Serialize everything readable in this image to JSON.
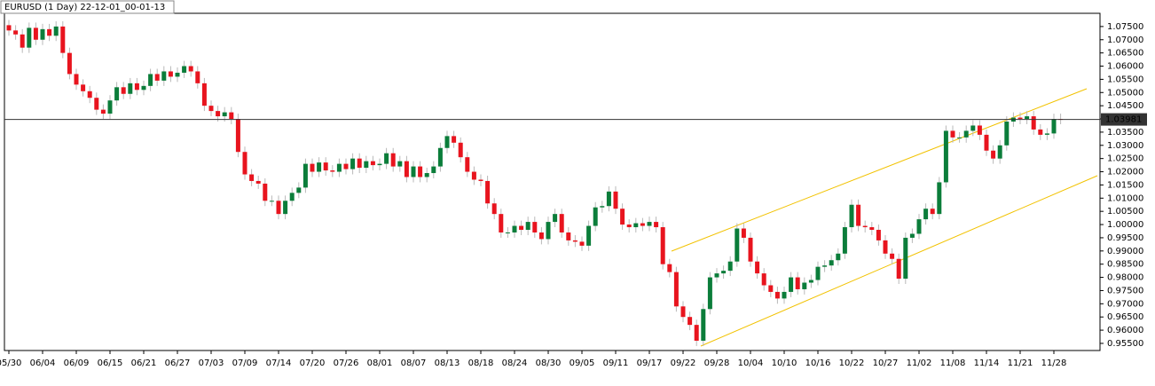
{
  "chart_data": {
    "type": "candlestick",
    "title": "EURUSD (1 Day) 22-12-01_00-01-13",
    "up_color": "#0b7d3a",
    "down_color": "#e8141e",
    "wick_color": "#b8b8b8",
    "ylim": [
      0.9523,
      1.08
    ],
    "yticks": [
      {
        "value": 0.955,
        "label": "0.95500"
      },
      {
        "value": 0.96,
        "label": "0.96000"
      },
      {
        "value": 0.965,
        "label": "0.96500"
      },
      {
        "value": 0.97,
        "label": "0.97000"
      },
      {
        "value": 0.975,
        "label": "0.97500"
      },
      {
        "value": 0.98,
        "label": "0.98000"
      },
      {
        "value": 0.985,
        "label": "0.98500"
      },
      {
        "value": 0.99,
        "label": "0.99000"
      },
      {
        "value": 0.995,
        "label": "0.99500"
      },
      {
        "value": 1.0,
        "label": "1.00000"
      },
      {
        "value": 1.005,
        "label": "1.00500"
      },
      {
        "value": 1.01,
        "label": "1.01000"
      },
      {
        "value": 1.015,
        "label": "1.01500"
      },
      {
        "value": 1.02,
        "label": "1.02000"
      },
      {
        "value": 1.025,
        "label": "1.02500"
      },
      {
        "value": 1.03,
        "label": "1.03000"
      },
      {
        "value": 1.035,
        "label": "1.03500"
      },
      {
        "value": 1.04,
        "label": "1.04000"
      },
      {
        "value": 1.045,
        "label": "1.04500"
      },
      {
        "value": 1.05,
        "label": "1.05000"
      },
      {
        "value": 1.055,
        "label": "1.05500"
      },
      {
        "value": 1.06,
        "label": "1.06000"
      },
      {
        "value": 1.065,
        "label": "1.06500"
      },
      {
        "value": 1.07,
        "label": "1.07000"
      },
      {
        "value": 1.075,
        "label": "1.07500"
      }
    ],
    "current_price": {
      "value": 1.03981,
      "label": "1.03981"
    },
    "categories": [
      "05/30",
      null,
      null,
      null,
      null,
      "06/04",
      null,
      null,
      null,
      null,
      "06/09",
      null,
      null,
      null,
      null,
      "06/15",
      null,
      null,
      null,
      null,
      "06/21",
      null,
      null,
      null,
      null,
      "06/27",
      null,
      null,
      null,
      null,
      "07/03",
      null,
      null,
      null,
      null,
      "07/09",
      null,
      null,
      null,
      null,
      "07/14",
      null,
      null,
      null,
      null,
      "07/20",
      null,
      null,
      null,
      null,
      "07/26",
      null,
      null,
      null,
      null,
      "08/01",
      null,
      null,
      null,
      null,
      "08/07",
      null,
      null,
      null,
      null,
      "08/13",
      null,
      null,
      null,
      null,
      "08/18",
      null,
      null,
      null,
      null,
      "08/24",
      null,
      null,
      null,
      null,
      "08/30",
      null,
      null,
      null,
      null,
      "09/05",
      null,
      null,
      null,
      null,
      "09/11",
      null,
      null,
      null,
      null,
      "09/17",
      null,
      null,
      null,
      null,
      "09/22",
      null,
      null,
      null,
      null,
      "09/28",
      null,
      null,
      null,
      null,
      "10/04",
      null,
      null,
      null,
      null,
      "10/10",
      null,
      null,
      null,
      null,
      "10/16",
      null,
      null,
      null,
      null,
      "10/22",
      null,
      null,
      null,
      null,
      "10/27",
      null,
      null,
      null,
      null,
      "11/02",
      null,
      null,
      null,
      null,
      "11/08",
      null,
      null,
      null,
      null,
      "11/14",
      null,
      null,
      null,
      null,
      "11/21",
      null,
      null,
      null,
      null,
      "11/28",
      null
    ],
    "open": [
      1.0755,
      1.0735,
      1.072,
      1.067,
      1.0745,
      1.07,
      1.074,
      1.0715,
      1.075,
      1.065,
      1.057,
      1.053,
      1.0505,
      1.048,
      1.0435,
      1.042,
      1.047,
      1.052,
      1.0495,
      1.0535,
      1.051,
      1.0525,
      1.057,
      1.0545,
      1.058,
      1.056,
      1.0575,
      1.06,
      1.058,
      1.0535,
      1.045,
      1.043,
      1.041,
      1.0425,
      1.04,
      1.0275,
      1.019,
      1.0165,
      1.0155,
      1.009,
      1.009,
      1.004,
      1.009,
      1.012,
      1.014,
      1.023,
      1.02,
      1.0235,
      1.0205,
      1.02,
      1.023,
      1.021,
      1.025,
      1.0215,
      1.024,
      1.0225,
      1.023,
      1.027,
      1.022,
      1.024,
      1.018,
      1.022,
      1.018,
      1.0195,
      1.022,
      1.029,
      1.0335,
      1.031,
      1.0255,
      1.02,
      1.017,
      1.0165,
      1.008,
      1.004,
      0.997,
      0.997,
      0.9995,
      0.998,
      1.001,
      0.997,
      0.9945,
      1.001,
      1.004,
      0.997,
      0.994,
      0.9935,
      0.992,
      0.9995,
      1.0065,
      1.007,
      1.0125,
      1.006,
      1.0,
      0.999,
      1.0005,
      0.9995,
      1.001,
      0.999,
      0.985,
      0.982,
      0.969,
      0.965,
      0.962,
      0.956,
      0.968,
      0.98,
      0.9815,
      0.9825,
      0.986,
      0.9985,
      0.995,
      0.986,
      0.9815,
      0.977,
      0.9745,
      0.972,
      0.9745,
      0.98,
      0.9755,
      0.978,
      0.979,
      0.984,
      0.9845,
      0.9865,
      0.989,
      0.999,
      1.0075,
      0.9995,
      0.999,
      0.998,
      0.994,
      0.989,
      0.987,
      0.9795,
      0.995,
      0.9965,
      1.002,
      1.006,
      1.004,
      1.016,
      1.0355,
      1.033,
      1.033,
      1.0355,
      1.0375,
      1.034,
      1.028,
      1.025,
      1.03,
      1.039,
      1.0405,
      1.04,
      1.041,
      1.036,
      1.034,
      1.0345,
      1.04
    ],
    "high": [
      1.0775,
      1.0755,
      1.074,
      1.0765,
      1.0765,
      1.076,
      1.076,
      1.077,
      1.077,
      1.067,
      1.059,
      1.055,
      1.0525,
      1.05,
      1.0455,
      1.049,
      1.054,
      1.054,
      1.0555,
      1.0555,
      1.0545,
      1.059,
      1.059,
      1.06,
      1.06,
      1.0595,
      1.062,
      1.062,
      1.06,
      1.0555,
      1.047,
      1.045,
      1.0445,
      1.0445,
      1.042,
      1.0295,
      1.021,
      1.0185,
      1.0175,
      1.011,
      1.011,
      1.011,
      1.014,
      1.016,
      1.025,
      1.025,
      1.0255,
      1.0255,
      1.0225,
      1.025,
      1.025,
      1.027,
      1.027,
      1.026,
      1.026,
      1.025,
      1.029,
      1.029,
      1.026,
      1.026,
      1.024,
      1.024,
      1.0215,
      1.024,
      1.031,
      1.0355,
      1.0355,
      1.033,
      1.0275,
      1.022,
      1.019,
      1.0185,
      1.01,
      1.006,
      0.999,
      1.0015,
      1.0015,
      1.003,
      1.003,
      0.999,
      1.003,
      1.006,
      1.006,
      0.999,
      0.996,
      0.9955,
      1.0015,
      1.0085,
      1.009,
      1.0145,
      1.0145,
      1.008,
      1.002,
      1.0025,
      1.0025,
      1.003,
      1.003,
      1.001,
      0.987,
      0.984,
      0.971,
      0.967,
      0.964,
      0.97,
      0.982,
      0.9835,
      0.9845,
      0.988,
      1.0005,
      1.0005,
      0.997,
      0.988,
      0.9835,
      0.979,
      0.9765,
      0.9765,
      0.982,
      0.982,
      0.98,
      0.981,
      0.986,
      0.9865,
      0.9885,
      0.991,
      1.001,
      1.0095,
      1.0095,
      1.0015,
      1.001,
      1.0,
      0.996,
      0.991,
      0.989,
      0.997,
      0.9985,
      1.004,
      1.008,
      1.008,
      1.018,
      1.0375,
      1.0375,
      1.035,
      1.0375,
      1.0395,
      1.0395,
      1.036,
      1.03,
      1.032,
      1.041,
      1.0425,
      1.0425,
      1.043,
      1.043,
      1.038,
      1.0365,
      1.042,
      1.042
    ],
    "low": [
      1.0715,
      1.07,
      1.065,
      1.065,
      1.068,
      1.068,
      1.0695,
      1.0695,
      1.063,
      1.055,
      1.051,
      1.0485,
      1.046,
      1.0415,
      1.04,
      1.04,
      1.045,
      1.0475,
      1.0475,
      1.049,
      1.049,
      1.0505,
      1.0525,
      1.0525,
      1.054,
      1.054,
      1.0555,
      1.056,
      1.0515,
      1.043,
      1.041,
      1.039,
      1.039,
      1.038,
      1.0255,
      1.017,
      1.0145,
      1.0135,
      1.007,
      1.007,
      1.002,
      1.002,
      1.007,
      1.01,
      1.012,
      1.018,
      1.018,
      1.0185,
      1.018,
      1.018,
      1.019,
      1.019,
      1.0195,
      1.0195,
      1.0205,
      1.0205,
      1.021,
      1.02,
      1.02,
      1.016,
      1.016,
      1.016,
      1.016,
      1.0175,
      1.02,
      1.027,
      1.029,
      1.0235,
      1.018,
      1.015,
      1.0145,
      1.006,
      1.002,
      0.995,
      0.995,
      0.995,
      0.996,
      0.996,
      0.995,
      0.9925,
      0.9925,
      0.999,
      0.995,
      0.992,
      0.9915,
      0.99,
      0.99,
      0.9975,
      1.0045,
      1.005,
      1.004,
      0.998,
      0.997,
      0.997,
      0.9975,
      0.9975,
      0.997,
      0.983,
      0.98,
      0.967,
      0.963,
      0.96,
      0.954,
      0.954,
      0.966,
      0.978,
      0.9795,
      0.9805,
      0.984,
      0.993,
      0.984,
      0.9795,
      0.975,
      0.9725,
      0.97,
      0.97,
      0.9725,
      0.9735,
      0.9735,
      0.976,
      0.977,
      0.982,
      0.9825,
      0.9845,
      0.987,
      0.997,
      0.9975,
      0.997,
      0.996,
      0.992,
      0.987,
      0.985,
      0.9775,
      0.9775,
      0.993,
      0.9945,
      1.0,
      1.002,
      1.002,
      1.014,
      1.031,
      1.031,
      1.031,
      1.0335,
      1.032,
      1.026,
      1.023,
      1.023,
      1.028,
      1.037,
      1.038,
      1.038,
      1.034,
      1.032,
      1.032,
      1.0325,
      1.038
    ],
    "close": [
      1.0735,
      1.072,
      1.067,
      1.0745,
      1.07,
      1.074,
      1.0715,
      1.075,
      1.065,
      1.057,
      1.053,
      1.0505,
      1.048,
      1.0435,
      1.042,
      1.047,
      1.052,
      1.0495,
      1.0535,
      1.051,
      1.0525,
      1.057,
      1.0545,
      1.058,
      1.056,
      1.0575,
      1.06,
      1.058,
      1.0535,
      1.045,
      1.043,
      1.041,
      1.0425,
      1.04,
      1.0275,
      1.019,
      1.0165,
      1.0155,
      1.009,
      1.009,
      1.004,
      1.009,
      1.012,
      1.014,
      1.023,
      1.02,
      1.0235,
      1.0205,
      1.02,
      1.023,
      1.021,
      1.025,
      1.0215,
      1.024,
      1.0225,
      1.023,
      1.027,
      1.022,
      1.024,
      1.018,
      1.022,
      1.018,
      1.0195,
      1.022,
      1.029,
      1.0335,
      1.031,
      1.0255,
      1.02,
      1.017,
      1.0165,
      1.008,
      1.004,
      0.997,
      0.997,
      0.9995,
      0.998,
      1.001,
      0.997,
      0.9945,
      1.001,
      1.004,
      0.997,
      0.994,
      0.9935,
      0.992,
      0.9995,
      1.0065,
      1.007,
      1.0125,
      1.006,
      1.0,
      0.999,
      1.0005,
      0.9995,
      1.001,
      0.999,
      0.985,
      0.982,
      0.969,
      0.965,
      0.962,
      0.956,
      0.968,
      0.98,
      0.9815,
      0.9825,
      0.986,
      0.9985,
      0.995,
      0.986,
      0.9815,
      0.977,
      0.9745,
      0.972,
      0.9745,
      0.98,
      0.9755,
      0.978,
      0.979,
      0.984,
      0.9845,
      0.9865,
      0.989,
      0.999,
      1.0075,
      0.9995,
      0.999,
      0.998,
      0.994,
      0.989,
      0.987,
      0.9795,
      0.995,
      0.9965,
      1.002,
      1.006,
      1.004,
      1.016,
      1.0355,
      1.033,
      1.033,
      1.0355,
      1.0375,
      1.034,
      1.028,
      1.025,
      1.03,
      1.039,
      1.0405,
      1.04,
      1.041,
      1.036,
      1.034,
      1.0345,
      1.04,
      1.03981
    ]
  }
}
